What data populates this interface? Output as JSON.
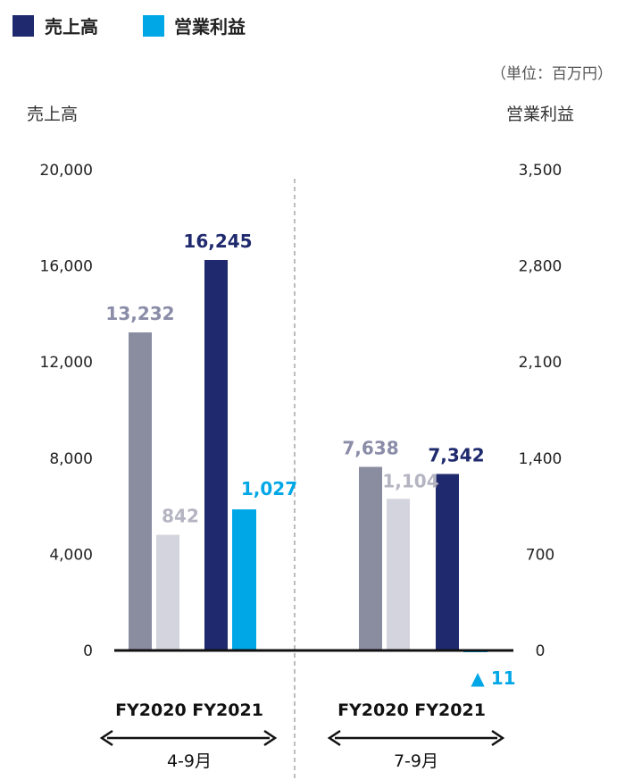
{
  "colors": {
    "sales_fy2021": "#1f2a6e",
    "profit_fy2021": "#00a7e6",
    "sales_fy2020": "#8a8ca0",
    "profit_fy2020": "#d4d4de",
    "profit_fy2020_label": "#b4b4c2",
    "sales_fy2020_label": "#8a8ca8"
  },
  "legend": [
    {
      "label": "売上高",
      "color": "#1f2a6e",
      "icon": "square-swatch"
    },
    {
      "label": "営業利益",
      "color": "#00a7e6",
      "icon": "square-swatch"
    }
  ],
  "unit_note": "（単位：百万円）",
  "chart_data": {
    "type": "bar",
    "y_left": {
      "label": "売上高",
      "range": [
        0,
        20000
      ],
      "ticks": [
        "0",
        "4,000",
        "8,000",
        "12,000",
        "16,000",
        "20,000"
      ]
    },
    "y_right": {
      "label": "営業利益",
      "range": [
        0,
        3500
      ],
      "ticks": [
        "0",
        "700",
        "1,400",
        "2,100",
        "2,800",
        "3,500"
      ]
    },
    "groups": [
      {
        "label": "FY2020 FY2021",
        "period": "4-9月",
        "bars": [
          {
            "axis": "left",
            "value": 13232,
            "label": "13,232",
            "fill": "#8a8ca0",
            "label_color": "#8a8ca8"
          },
          {
            "axis": "right",
            "value": 842,
            "label": "842",
            "fill": "#d4d4de",
            "label_color": "#b4b4c2"
          },
          {
            "axis": "left",
            "value": 16245,
            "label": "16,245",
            "fill": "#1f2a6e",
            "label_color": "#1f2a6e"
          },
          {
            "axis": "right",
            "value": 1027,
            "label": "1,027",
            "fill": "#00a7e6",
            "label_color": "#00a7e6"
          }
        ]
      },
      {
        "label": "FY2020 FY2021",
        "period": "7-9月",
        "bars": [
          {
            "axis": "left",
            "value": 7638,
            "label": "7,638",
            "fill": "#8a8ca0",
            "label_color": "#8a8ca8"
          },
          {
            "axis": "right",
            "value": 1104,
            "label": "1,104",
            "fill": "#d4d4de",
            "label_color": "#b4b4c2"
          },
          {
            "axis": "left",
            "value": 7342,
            "label": "7,342",
            "fill": "#1f2a6e",
            "label_color": "#1f2a6e"
          },
          {
            "axis": "right",
            "value": -11,
            "label": "▲ 11",
            "fill": "#00a7e6",
            "label_color": "#00a7e6"
          }
        ]
      }
    ],
    "grid": false,
    "legend_position": "top-left"
  }
}
